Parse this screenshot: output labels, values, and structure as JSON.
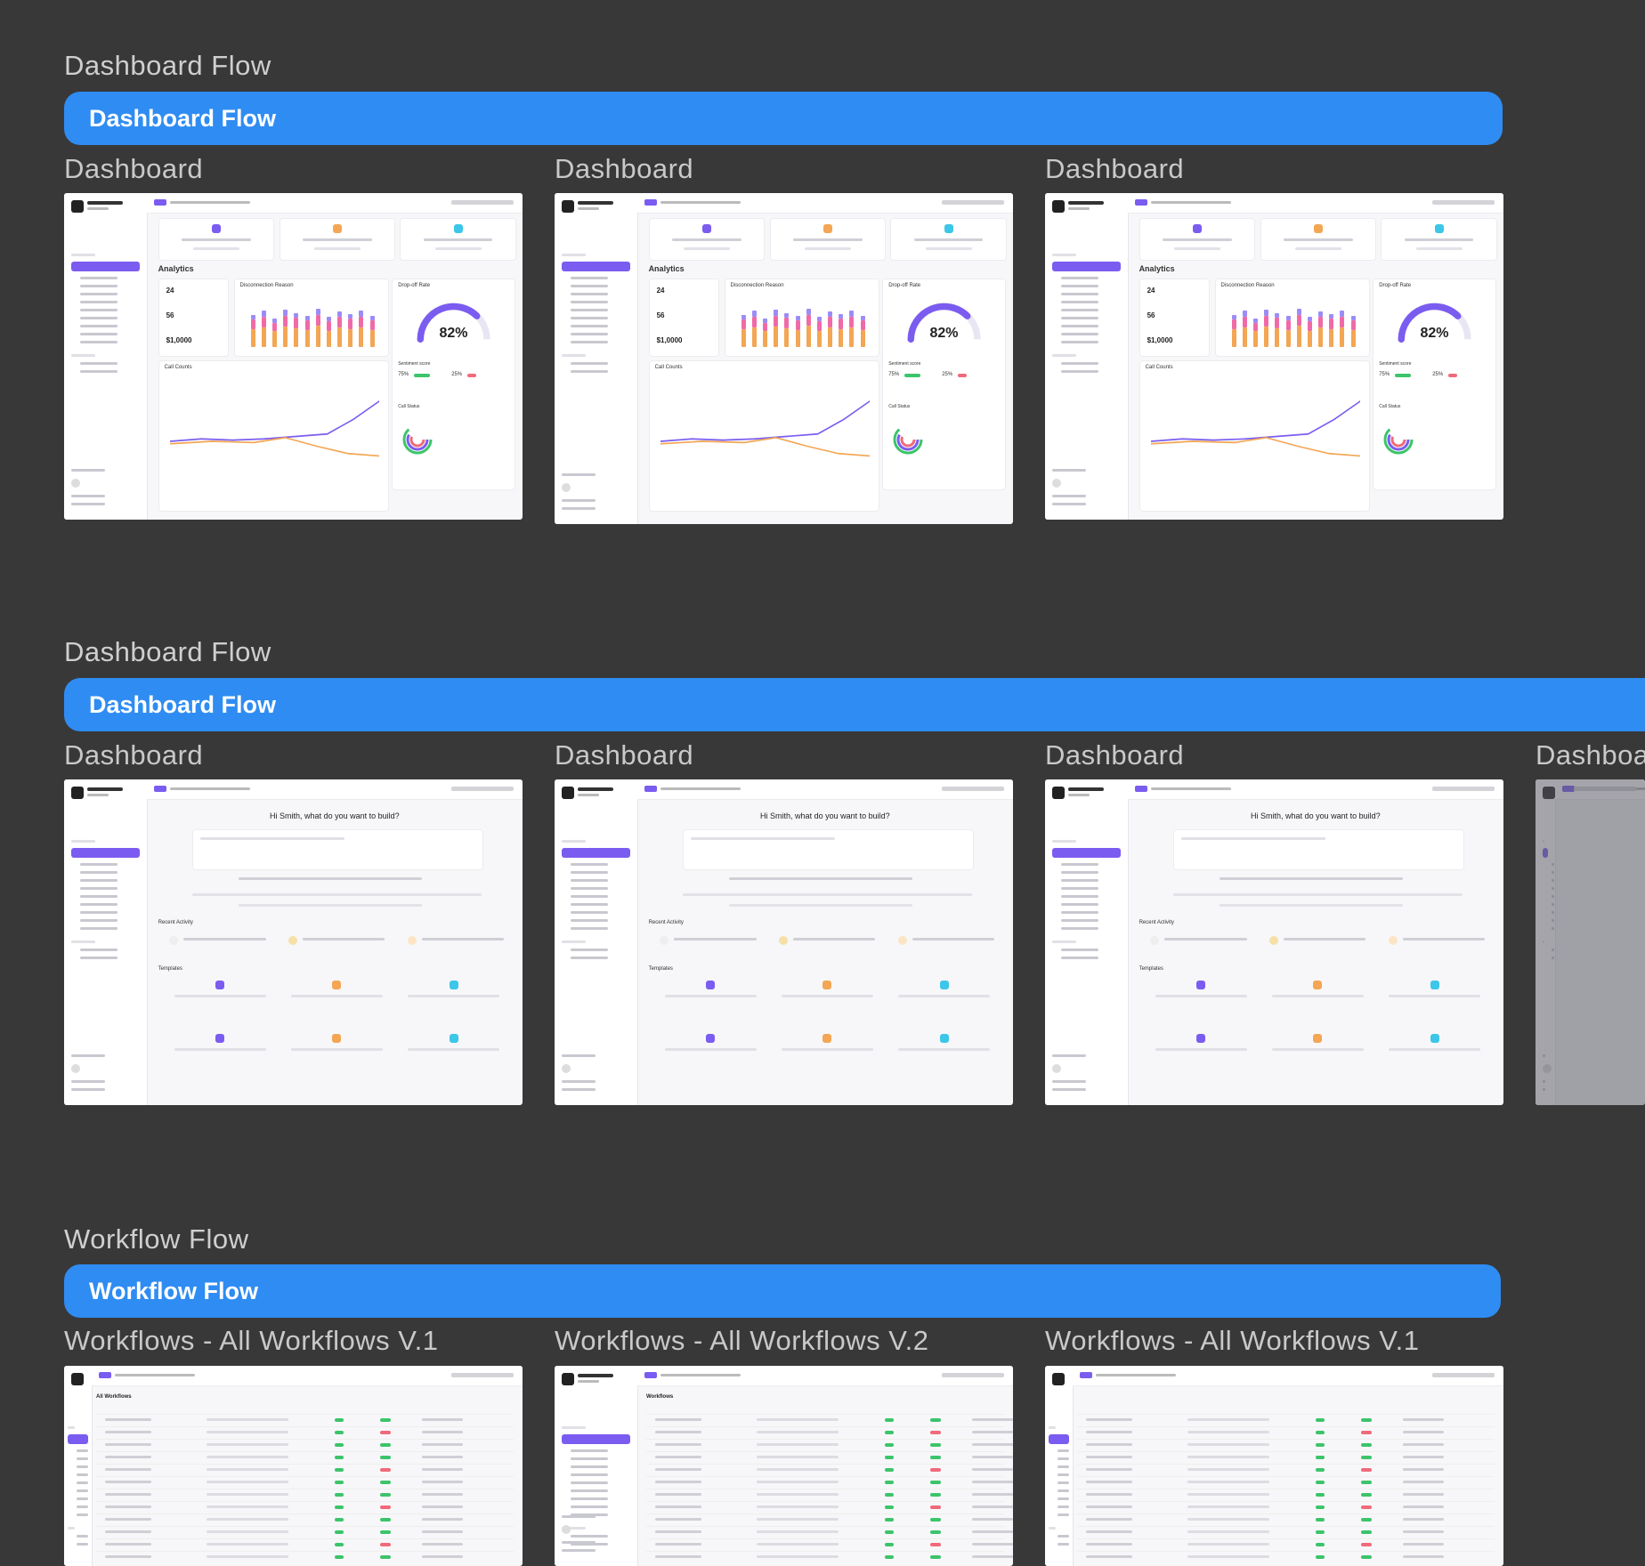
{
  "sections": [
    {
      "heading": "Dashboard Flow",
      "banner": "Dashboard Flow",
      "frames": [
        {
          "label": "Dashboard",
          "kind": "analytics",
          "percent": "82%"
        },
        {
          "label": "Dashboard",
          "kind": "analytics",
          "percent": "82%"
        },
        {
          "label": "Dashboard",
          "kind": "analytics",
          "percent": "82%"
        }
      ]
    },
    {
      "heading": "Dashboard Flow",
      "banner": "Dashboard Flow",
      "frames": [
        {
          "label": "Dashboard",
          "kind": "home",
          "greeting": "Hi Smith, what do you want to build?"
        },
        {
          "label": "Dashboard",
          "kind": "home",
          "greeting": "Hi Smith, what do you want to build?"
        },
        {
          "label": "Dashboard",
          "kind": "home",
          "greeting": "Hi Smith, what do you want to build?"
        },
        {
          "label": "Dashboa",
          "kind": "home-dim"
        }
      ]
    },
    {
      "heading": "Workflow Flow",
      "banner": "Workflow Flow",
      "frames": [
        {
          "label": "Workflows - All Workflows V.1",
          "kind": "table",
          "title": "All Workflows"
        },
        {
          "label": "Workflows - All Workflows V.2",
          "kind": "table",
          "title": "Workflows"
        },
        {
          "label": "Workflows - All Workflows V.1",
          "kind": "table",
          "title": ""
        }
      ]
    }
  ],
  "mini": {
    "analytics_heading": "Analytics",
    "call_counts": "Call Counts",
    "disconnection": "Disconnection Reason",
    "dropoff": "Drop-off Rate",
    "sentiment": "Sentiment score",
    "call_status": "Call Status",
    "stat1": "24",
    "stat2": "56",
    "stat3": "$1,0000",
    "positive": "75%",
    "negative": "25%",
    "recent": "Recent Activity",
    "templates": "Templates"
  }
}
